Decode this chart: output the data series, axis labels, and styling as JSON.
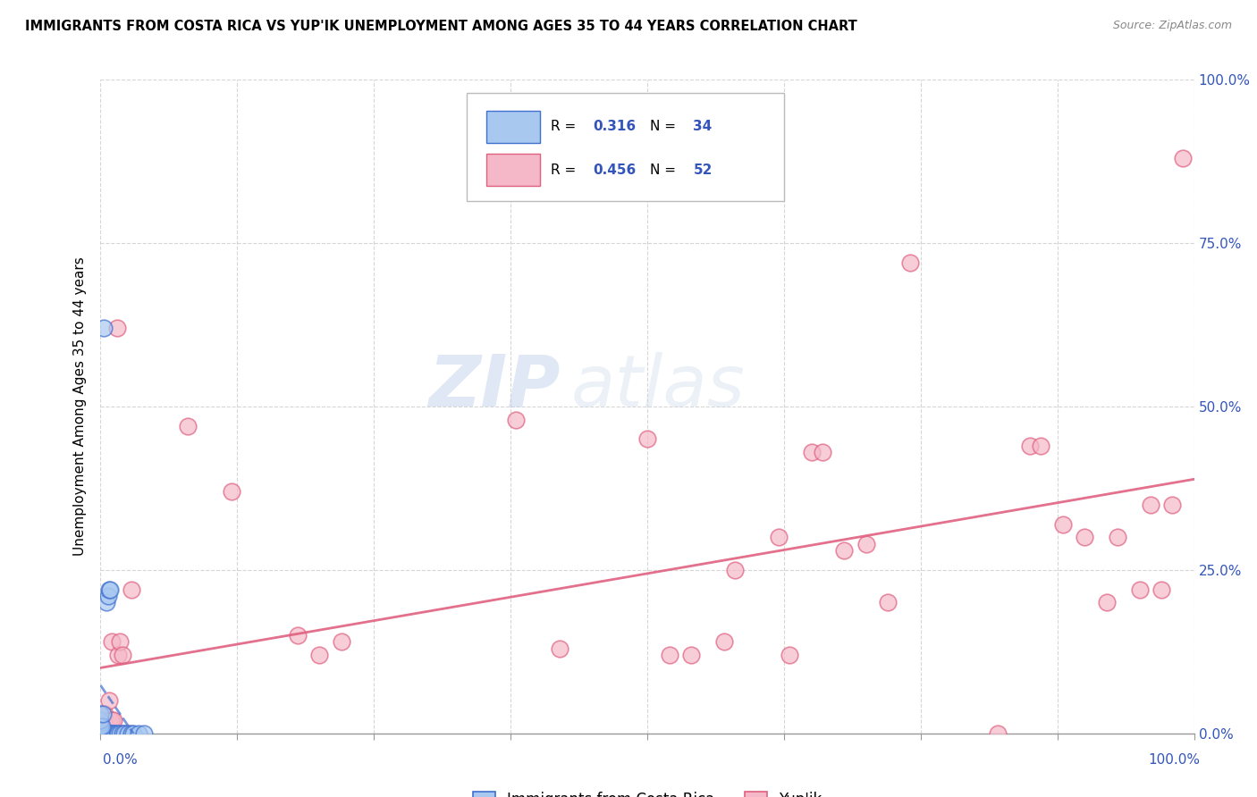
{
  "title": "IMMIGRANTS FROM COSTA RICA VS YUP'IK UNEMPLOYMENT AMONG AGES 35 TO 44 YEARS CORRELATION CHART",
  "source": "Source: ZipAtlas.com",
  "ylabel": "Unemployment Among Ages 35 to 44 years",
  "xlim": [
    0,
    1.0
  ],
  "ylim": [
    0,
    1.0
  ],
  "watermark_line1": "ZIP",
  "watermark_line2": "atlas",
  "legend_R1": "0.316",
  "legend_N1": "34",
  "legend_R2": "0.456",
  "legend_N2": "52",
  "label1": "Immigrants from Costa Rica",
  "label2": "Yup'ik",
  "color1": "#A8C8F0",
  "color2": "#F5B8C8",
  "trendline1_color": "#4070D0",
  "trendline2_color": "#E06080",
  "blue_scatter": [
    [
      0.003,
      0.62
    ],
    [
      0.005,
      0.2
    ],
    [
      0.007,
      0.21
    ],
    [
      0.008,
      0.22
    ],
    [
      0.009,
      0.22
    ],
    [
      0.0,
      0.0
    ],
    [
      0.001,
      0.0
    ],
    [
      0.002,
      0.0
    ],
    [
      0.003,
      0.0
    ],
    [
      0.004,
      0.0
    ],
    [
      0.005,
      0.0
    ],
    [
      0.006,
      0.0
    ],
    [
      0.007,
      0.0
    ],
    [
      0.008,
      0.0
    ],
    [
      0.009,
      0.0
    ],
    [
      0.01,
      0.0
    ],
    [
      0.011,
      0.0
    ],
    [
      0.012,
      0.0
    ],
    [
      0.013,
      0.0
    ],
    [
      0.015,
      0.0
    ],
    [
      0.016,
      0.0
    ],
    [
      0.018,
      0.0
    ],
    [
      0.02,
      0.0
    ],
    [
      0.022,
      0.0
    ],
    [
      0.025,
      0.0
    ],
    [
      0.028,
      0.0
    ],
    [
      0.03,
      0.0
    ],
    [
      0.035,
      0.0
    ],
    [
      0.04,
      0.0
    ],
    [
      0.0,
      0.01
    ],
    [
      0.0,
      0.02
    ],
    [
      0.0,
      0.03
    ],
    [
      0.001,
      0.01
    ],
    [
      0.002,
      0.03
    ]
  ],
  "pink_scatter": [
    [
      0.01,
      0.14
    ],
    [
      0.015,
      0.62
    ],
    [
      0.08,
      0.47
    ],
    [
      0.12,
      0.37
    ],
    [
      0.18,
      0.15
    ],
    [
      0.2,
      0.12
    ],
    [
      0.22,
      0.14
    ],
    [
      0.38,
      0.48
    ],
    [
      0.42,
      0.13
    ],
    [
      0.5,
      0.45
    ],
    [
      0.52,
      0.12
    ],
    [
      0.54,
      0.12
    ],
    [
      0.62,
      0.3
    ],
    [
      0.63,
      0.12
    ],
    [
      0.65,
      0.43
    ],
    [
      0.66,
      0.43
    ],
    [
      0.68,
      0.28
    ],
    [
      0.7,
      0.29
    ],
    [
      0.72,
      0.2
    ],
    [
      0.74,
      0.72
    ],
    [
      0.82,
      0.0
    ],
    [
      0.85,
      0.44
    ],
    [
      0.86,
      0.44
    ],
    [
      0.88,
      0.32
    ],
    [
      0.9,
      0.3
    ],
    [
      0.92,
      0.2
    ],
    [
      0.93,
      0.3
    ],
    [
      0.95,
      0.22
    ],
    [
      0.96,
      0.35
    ],
    [
      0.97,
      0.22
    ],
    [
      0.98,
      0.35
    ],
    [
      0.99,
      0.88
    ],
    [
      0.005,
      0.0
    ],
    [
      0.006,
      0.0
    ],
    [
      0.007,
      0.0
    ],
    [
      0.0,
      0.0
    ],
    [
      0.001,
      0.0
    ],
    [
      0.002,
      0.0
    ],
    [
      0.003,
      0.02
    ],
    [
      0.004,
      0.03
    ],
    [
      0.008,
      0.05
    ],
    [
      0.009,
      0.02
    ],
    [
      0.01,
      0.02
    ],
    [
      0.012,
      0.02
    ],
    [
      0.016,
      0.12
    ],
    [
      0.018,
      0.14
    ],
    [
      0.02,
      0.12
    ],
    [
      0.022,
      0.0
    ],
    [
      0.025,
      0.0
    ],
    [
      0.028,
      0.22
    ],
    [
      0.57,
      0.14
    ],
    [
      0.58,
      0.25
    ]
  ],
  "background_color": "#FFFFFF",
  "grid_color": "#CCCCCC"
}
